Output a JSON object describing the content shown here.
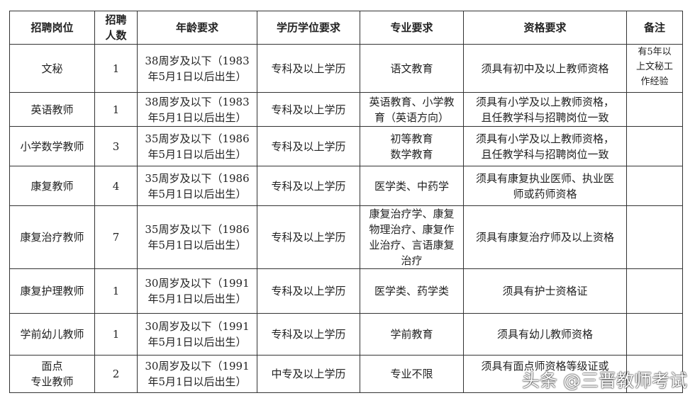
{
  "headers": [
    "招聘岗位",
    "招聘\n人数",
    "年龄要求",
    "学历学位要求",
    "专业要求",
    "资格要求",
    "备注"
  ],
  "rows": [
    {
      "post": "文秘",
      "count": "1",
      "age": "38周岁及以下（1983\n年5月1日以后出生）",
      "edu": "专科及以上学历",
      "major": "语文教育",
      "qual": "须具有初中及以上教师资格",
      "note": "有5年以\n上文秘工\n作经验"
    },
    {
      "post": "英语教师",
      "count": "1",
      "age": "38周岁及以下（1983\n年5月1日以后出生）",
      "edu": "专科及以上学历",
      "major": "英语教育、小学教\n育（英语方向）",
      "qual": "须具有小学及以上教师资格，\n且任教学科与招聘岗位一致",
      "note": ""
    },
    {
      "post": "小学数学教师",
      "count": "3",
      "age": "35周岁及以下（1986\n年5月1日以后出生）",
      "edu": "专科及以上学历",
      "major": "初等教育\n数学教育",
      "qual": "须具有小学及以上教师资格，\n且任教学科与招聘岗位一致",
      "note": ""
    },
    {
      "post": "康复教师",
      "count": "4",
      "age": "35周岁及以下（1986\n年5月1日以后出生）",
      "edu": "专科及以上学历",
      "major": "医学类、中药学",
      "qual": "须具有康复执业医师、执业医\n师或药师资格",
      "note": ""
    },
    {
      "post": "康复治疗教师",
      "count": "7",
      "age": "35周岁及以下（1986\n年5月1日以后出生）",
      "edu": "专科及以上学历",
      "major": "康复治疗学、康复\n物理治疗、康复作\n业治疗、言语康复\n治疗",
      "qual": "须具有康复治疗师及以上资格",
      "note": ""
    },
    {
      "post": "康复护理教师",
      "count": "1",
      "age": "30周岁及以下（1991\n年5月1日以后出生）",
      "edu": "专科及以上学历",
      "major": "医学类、药学类",
      "qual": "须具有护士资格证",
      "note": ""
    },
    {
      "post": "学前幼儿教师",
      "count": "1",
      "age": "30周岁及以下（1991\n年5月1日以后出生）",
      "edu": "专科及以上学历",
      "major": "学前教育",
      "qual": "须具有幼儿教师资格",
      "note": ""
    },
    {
      "post": "面点\n专业教师",
      "count": "2",
      "age": "30周岁及以下（1991\n年5月1日以后出生）",
      "edu": "中专及以上学历",
      "major": "专业不限",
      "qual": "须具有面点师资格等级证或\n\n",
      "note": ""
    }
  ],
  "watermark": "头条 @三晋教师考试"
}
